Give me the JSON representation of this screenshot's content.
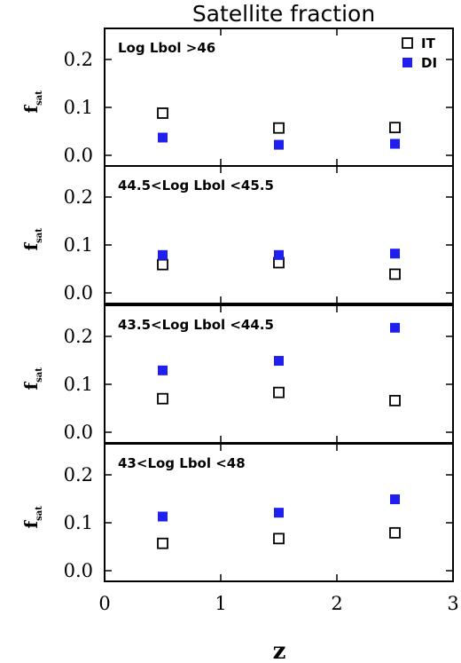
{
  "chart_data": {
    "type": "scatter",
    "title": "Satellite fraction",
    "xlabel": "z",
    "ylabel": "f",
    "ylabel_sub": "sat",
    "xlim": [
      0,
      3
    ],
    "ylim": [
      0.0,
      0.25
    ],
    "x_ticks": [
      "0",
      "1",
      "2",
      "3"
    ],
    "y_ticks": [
      "0.0",
      "0.1",
      "0.2"
    ],
    "legend": {
      "position": "top-right",
      "entries": [
        {
          "name": "IT",
          "marker": "open-square",
          "color": "#000000"
        },
        {
          "name": "DI",
          "marker": "filled-square",
          "color": "#1f1ff0"
        }
      ]
    },
    "panels": [
      {
        "label": "Log Lbol >46",
        "series": [
          {
            "name": "IT",
            "x": [
              0.5,
              1.5,
              2.5
            ],
            "y": [
              0.088,
              0.057,
              0.058
            ]
          },
          {
            "name": "DI",
            "x": [
              0.5,
              1.5,
              2.5
            ],
            "y": [
              0.037,
              0.022,
              0.024
            ]
          }
        ]
      },
      {
        "label": "44.5<Log Lbol <45.5",
        "series": [
          {
            "name": "IT",
            "x": [
              0.5,
              1.5,
              2.5
            ],
            "y": [
              0.059,
              0.063,
              0.039
            ]
          },
          {
            "name": "DI",
            "x": [
              0.5,
              1.5,
              2.5
            ],
            "y": [
              0.079,
              0.079,
              0.082
            ]
          }
        ]
      },
      {
        "label": "43.5<Log Lbol <44.5",
        "series": [
          {
            "name": "IT",
            "x": [
              0.5,
              1.5,
              2.5
            ],
            "y": [
              0.07,
              0.083,
              0.066
            ]
          },
          {
            "name": "DI",
            "x": [
              0.5,
              1.5,
              2.5
            ],
            "y": [
              0.129,
              0.149,
              0.218
            ]
          }
        ]
      },
      {
        "label": "43<Log Lbol <48",
        "series": [
          {
            "name": "IT",
            "x": [
              0.5,
              1.5,
              2.5
            ],
            "y": [
              0.057,
              0.067,
              0.079
            ]
          },
          {
            "name": "DI",
            "x": [
              0.5,
              1.5,
              2.5
            ],
            "y": [
              0.113,
              0.121,
              0.149
            ]
          }
        ]
      }
    ]
  }
}
